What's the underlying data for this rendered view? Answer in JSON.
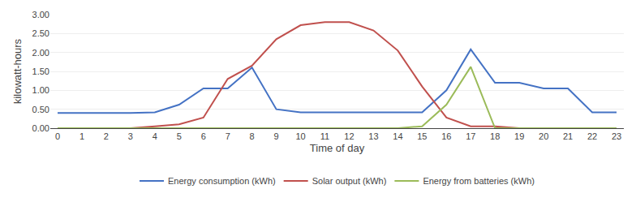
{
  "chart_data": {
    "type": "line",
    "x": [
      0,
      1,
      2,
      3,
      4,
      5,
      6,
      7,
      8,
      9,
      10,
      11,
      12,
      13,
      14,
      15,
      16,
      17,
      18,
      19,
      20,
      21,
      22,
      23
    ],
    "series": [
      {
        "name": "Energy consumption (kWh)",
        "color": "#4472C4",
        "values": [
          0.4,
          0.4,
          0.4,
          0.4,
          0.42,
          0.62,
          1.05,
          1.05,
          1.6,
          0.5,
          0.42,
          0.42,
          0.42,
          0.42,
          0.42,
          0.42,
          1.0,
          2.08,
          1.2,
          1.2,
          1.05,
          1.05,
          0.42,
          0.42
        ]
      },
      {
        "name": "Solar output (kWh)",
        "color": "#C0504D",
        "values": [
          0.0,
          0.0,
          0.0,
          0.0,
          0.05,
          0.1,
          0.28,
          1.3,
          1.65,
          2.35,
          2.72,
          2.8,
          2.8,
          2.58,
          2.05,
          1.1,
          0.28,
          0.05,
          0.05,
          0.0,
          0.0,
          0.0,
          0.0,
          0.0
        ]
      },
      {
        "name": "Energy from batteries (kWh)",
        "color": "#9BBB59",
        "values": [
          0.0,
          0.0,
          0.0,
          0.0,
          0.0,
          0.0,
          0.0,
          0.0,
          0.0,
          0.0,
          0.0,
          0.0,
          0.0,
          0.0,
          0.0,
          0.05,
          0.62,
          1.62,
          0.0,
          0.0,
          0.0,
          0.0,
          0.0,
          0.0
        ]
      }
    ],
    "xlabel": "Time of day",
    "ylabel": "kilowatt-hours",
    "xlim": [
      -0.3,
      23.3
    ],
    "xticks": [
      0,
      1,
      2,
      3,
      4,
      5,
      6,
      7,
      8,
      9,
      10,
      11,
      12,
      13,
      14,
      15,
      16,
      17,
      18,
      19,
      20,
      21,
      22,
      23
    ],
    "ylim": [
      0,
      3
    ],
    "yticks": [
      {
        "value": 0,
        "label": "0.00"
      },
      {
        "value": 0.5,
        "label": "0.50"
      },
      {
        "value": 1,
        "label": "1.00"
      },
      {
        "value": 1.5,
        "label": "1.50"
      },
      {
        "value": 2,
        "label": "2.00"
      },
      {
        "value": 2.5,
        "label": "2.50"
      },
      {
        "value": 3,
        "label": "3.00"
      }
    ],
    "grid": "y",
    "legend": "bottom"
  }
}
